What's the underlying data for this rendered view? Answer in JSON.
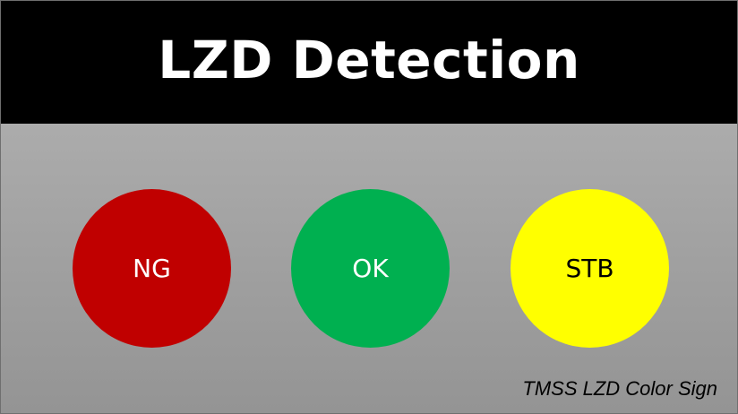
{
  "title": "LZD Detection",
  "lamps": [
    {
      "label": "NG",
      "color": "#c00000",
      "text_color": "#ffffff"
    },
    {
      "label": "OK",
      "color": "#00b050",
      "text_color": "#ffffff"
    },
    {
      "label": "STB",
      "color": "#ffff00",
      "text_color": "#000000"
    }
  ],
  "caption": "TMSS LZD Color Sign"
}
